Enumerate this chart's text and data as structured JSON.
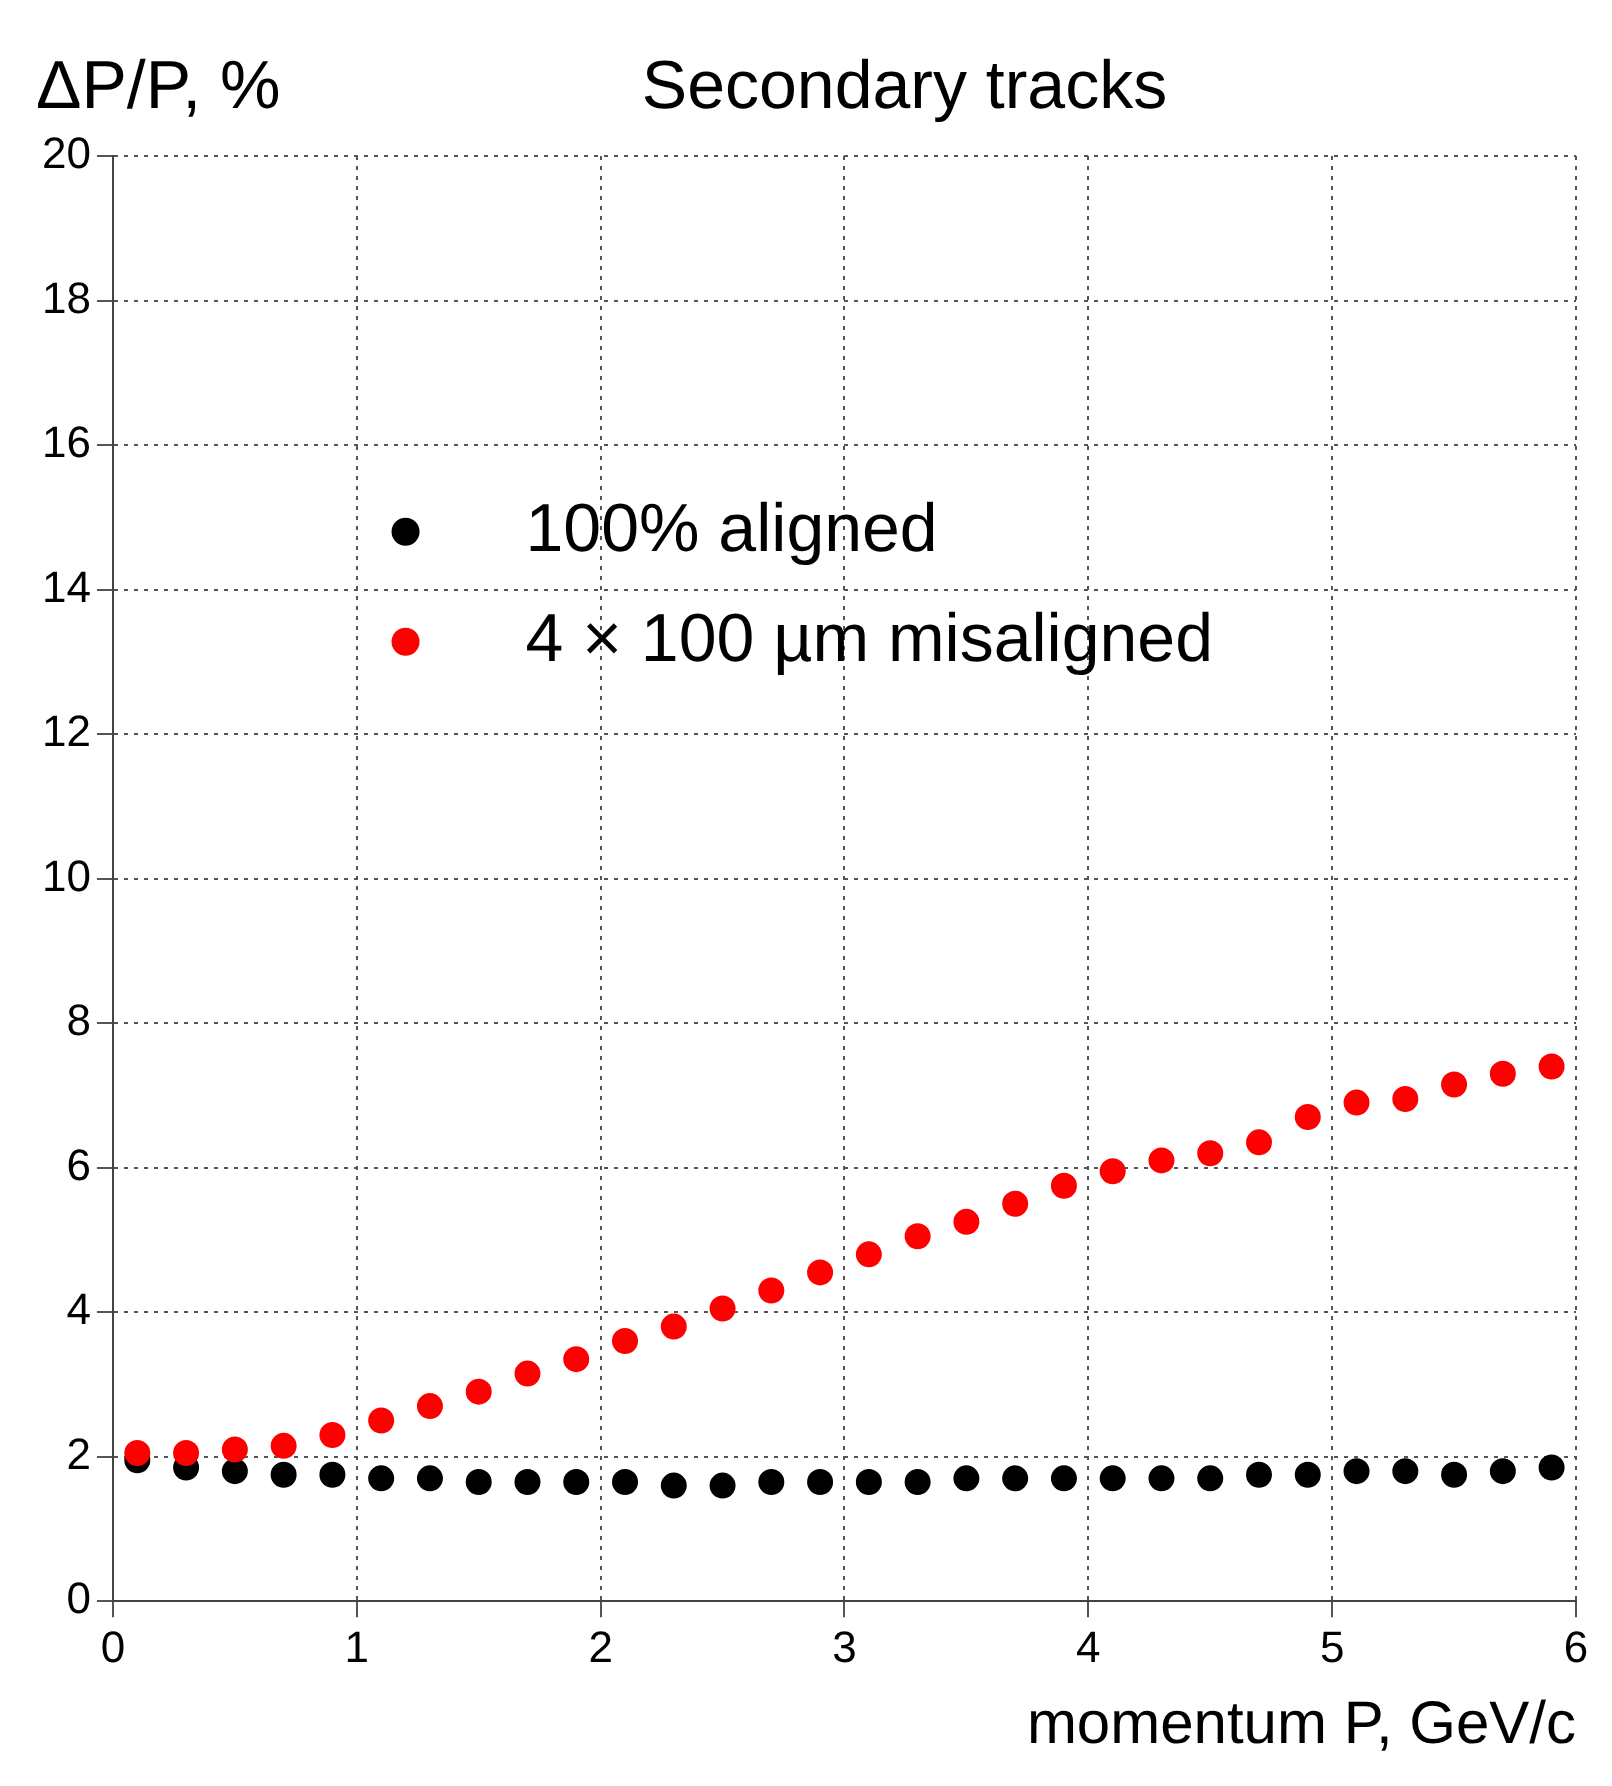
{
  "chart_data": {
    "type": "scatter",
    "title": "Secondary tracks",
    "xlabel": "momentum P, GeV/c",
    "ylabel": "ΔP/P, %",
    "x": [
      0.1,
      0.3,
      0.5,
      0.7,
      0.9,
      1.1,
      1.3,
      1.5,
      1.7,
      1.9,
      2.1,
      2.3,
      2.5,
      2.7,
      2.9,
      3.1,
      3.3,
      3.5,
      3.7,
      3.9,
      4.1,
      4.3,
      4.5,
      4.7,
      4.9,
      5.1,
      5.3,
      5.5,
      5.7,
      5.9
    ],
    "series": [
      {
        "name": "100% aligned",
        "color": "#000000",
        "values": [
          1.95,
          1.85,
          1.8,
          1.75,
          1.75,
          1.7,
          1.7,
          1.65,
          1.65,
          1.65,
          1.65,
          1.6,
          1.6,
          1.65,
          1.65,
          1.65,
          1.65,
          1.7,
          1.7,
          1.7,
          1.7,
          1.7,
          1.7,
          1.75,
          1.75,
          1.8,
          1.8,
          1.75,
          1.8,
          1.85
        ]
      },
      {
        "name": "4 × 100 µm misaligned",
        "color": "#ff0000",
        "values": [
          2.05,
          2.05,
          2.1,
          2.15,
          2.3,
          2.5,
          2.7,
          2.9,
          3.15,
          3.35,
          3.6,
          3.8,
          4.05,
          4.3,
          4.55,
          4.8,
          5.05,
          5.25,
          5.5,
          5.75,
          5.95,
          6.1,
          6.2,
          6.35,
          6.7,
          6.9,
          6.95,
          7.15,
          7.3,
          7.4
        ]
      }
    ],
    "xlim": [
      0,
      6
    ],
    "xticks": [
      0,
      1,
      2,
      3,
      4,
      5,
      6
    ],
    "ylim": [
      0,
      20
    ],
    "yticks": [
      0,
      2,
      4,
      6,
      8,
      10,
      12,
      14,
      16,
      18,
      20
    ],
    "grid": true,
    "legend": "top left",
    "marker": "circle"
  }
}
